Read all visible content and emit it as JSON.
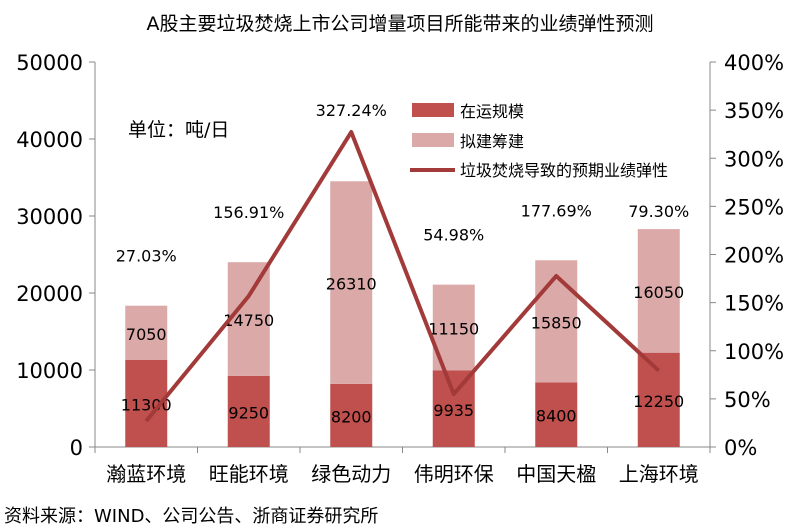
{
  "chart_data": {
    "type": "bar",
    "title": "A股主要垃圾焚烧上市公司增量项目所能带来的业绩弹性预测",
    "annotation": "单位：吨/日",
    "source": "资料来源：WIND、公司公告、浙商证券研究所",
    "categories": [
      "瀚蓝环境",
      "旺能环境",
      "绿色动力",
      "伟明环保",
      "中国天楹",
      "上海环境"
    ],
    "series": [
      {
        "name": "在运规模",
        "type": "bar",
        "stack": true,
        "axis": "left",
        "color": "#c0504d",
        "values": [
          11300,
          9250,
          8200,
          9935,
          8400,
          12250
        ],
        "labels": [
          "11300",
          "9250",
          "8200",
          "9935",
          "8400",
          "12250"
        ]
      },
      {
        "name": "拟建筹建",
        "type": "bar",
        "stack": true,
        "axis": "left",
        "color": "#dca9a9",
        "values": [
          7050,
          14750,
          26310,
          11150,
          15850,
          16050
        ],
        "labels": [
          "7050",
          "14750",
          "26310",
          "11150",
          "15850",
          "16050"
        ]
      },
      {
        "name": "垃圾焚烧导致的预期业绩弹性",
        "type": "line",
        "axis": "right",
        "color": "#a33a3a",
        "values": [
          27.03,
          156.91,
          327.24,
          54.98,
          177.69,
          79.3
        ],
        "labels": [
          "27.03%",
          "156.91%",
          "327.24%",
          "54.98%",
          "177.69%",
          "79.30%"
        ]
      }
    ],
    "ylim": [
      0,
      50000
    ],
    "y2lim": [
      0,
      400
    ],
    "yticks": [
      "0",
      "10000",
      "20000",
      "30000",
      "40000",
      "50000"
    ],
    "y2ticks": [
      "0%",
      "50%",
      "100%",
      "150%",
      "200%",
      "250%",
      "300%",
      "350%",
      "400%"
    ],
    "grid": false,
    "legend": "top-right"
  }
}
